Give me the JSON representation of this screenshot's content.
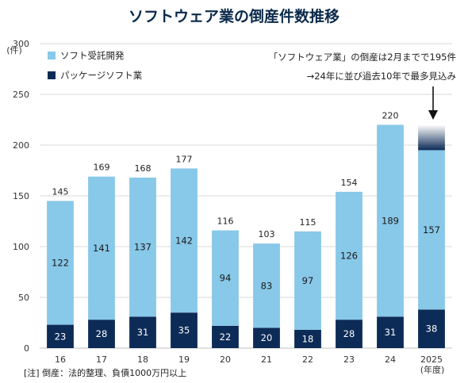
{
  "chart_data": {
    "type": "bar",
    "stacked": true,
    "title": "ソフトウェア業の倒産件数推移",
    "y_unit": "(件)",
    "x_unit": "(年度)",
    "ylim": [
      0,
      300
    ],
    "y_ticks": [
      "0",
      "50",
      "100",
      "150",
      "200",
      "250",
      "300"
    ],
    "grid": true,
    "categories": [
      "16",
      "17",
      "18",
      "19",
      "20",
      "21",
      "22",
      "23",
      "24",
      "2025"
    ],
    "series": [
      {
        "name": "パッケージソフト業",
        "color": "#0d2b57",
        "label_color": "#ffffff",
        "values": [
          23,
          28,
          31,
          35,
          22,
          20,
          18,
          28,
          31,
          38
        ]
      },
      {
        "name": "ソフト受託開発",
        "color": "#88c8e8",
        "label_color": "#1a1a1a",
        "values": [
          122,
          141,
          137,
          142,
          94,
          83,
          97,
          126,
          189,
          157
        ]
      }
    ],
    "totals": [
      "145",
      "169",
      "168",
      "177",
      "116",
      "103",
      "115",
      "154",
      "220",
      ""
    ],
    "legend_position": "top-left",
    "projection": {
      "category": "2025",
      "value": 220
    },
    "annotation": {
      "line1": "「ソフトウェア業」の倒産は2月までで195件",
      "line2": "→24年に並び過去10年で最多見込み"
    },
    "note": "[注] 倒産：法的整理、負債1000万円以上",
    "colors": {
      "grid": "#d9d9d9",
      "title": "#0b2a4a"
    }
  }
}
